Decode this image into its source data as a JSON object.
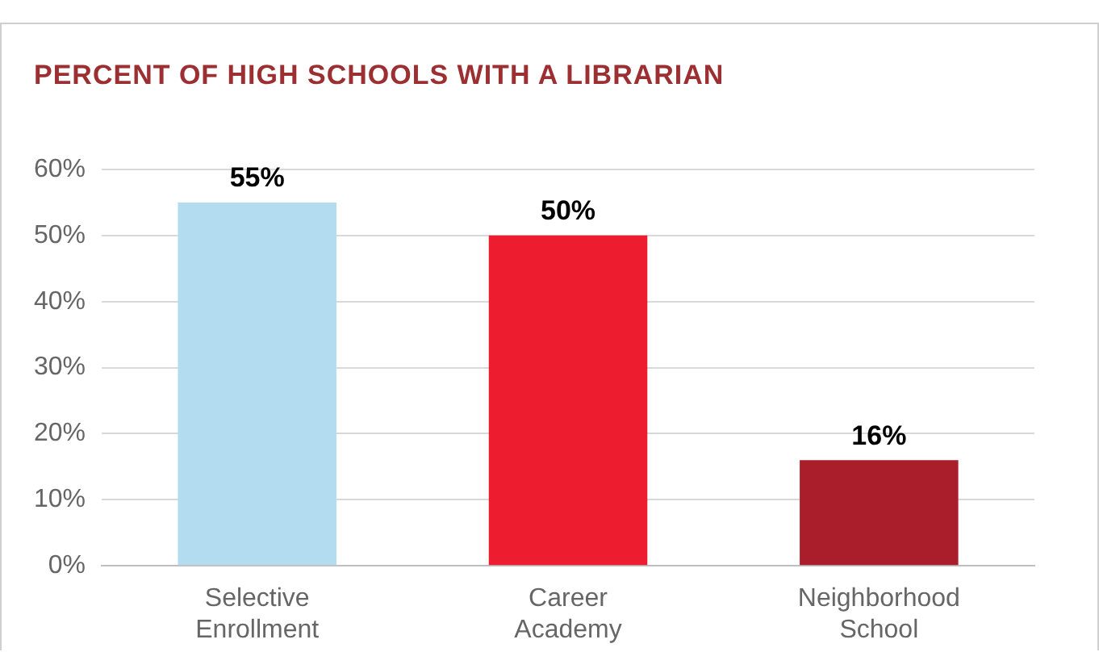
{
  "chart_data": {
    "type": "bar",
    "title": "PERCENT OF HIGH SCHOOLS WITH A LIBRARIAN",
    "categories": [
      "Selective Enrollment",
      "Career Academy",
      "Neighborhood School"
    ],
    "values": [
      55,
      50,
      16
    ],
    "colors": [
      "#b3dcf0",
      "#ed1c2e",
      "#a91e2a"
    ],
    "value_labels": [
      "55%",
      "50%",
      "16%"
    ],
    "ylim": [
      0,
      60
    ],
    "yticks": [
      {
        "value": 0,
        "label": "0%"
      },
      {
        "value": 10,
        "label": "10%"
      },
      {
        "value": 20,
        "label": "20%"
      },
      {
        "value": 30,
        "label": "30%"
      },
      {
        "value": 40,
        "label": "40%"
      },
      {
        "value": 50,
        "label": "50%"
      },
      {
        "value": 60,
        "label": "60%"
      }
    ],
    "grid": "y",
    "legend": false
  }
}
